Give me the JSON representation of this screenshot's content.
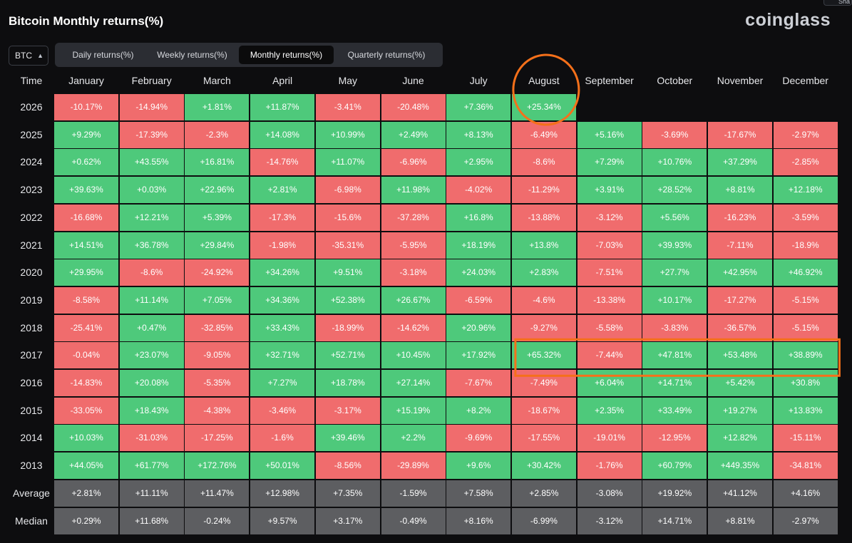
{
  "header": {
    "title": "Bitcoin Monthly returns(%)",
    "brand": "coinglass",
    "share_label": "Sha"
  },
  "controls": {
    "coin": "BTC",
    "tabs": [
      {
        "label": "Daily returns(%)",
        "active": false
      },
      {
        "label": "Weekly returns(%)",
        "active": false
      },
      {
        "label": "Monthly returns(%)",
        "active": true
      },
      {
        "label": "Quarterly returns(%)",
        "active": false
      }
    ]
  },
  "colors": {
    "positive": "#4ec97b",
    "negative": "#f06c6d",
    "summary": "#5d5e61",
    "annotation": "#f5701a"
  },
  "chart_data": {
    "type": "table",
    "title": "Bitcoin Monthly returns(%)",
    "row_header": "Time",
    "columns": [
      "January",
      "February",
      "March",
      "April",
      "May",
      "June",
      "July",
      "August",
      "September",
      "October",
      "November",
      "December"
    ],
    "rows": [
      {
        "label": "2026",
        "values": [
          "-10.17%",
          "-14.94%",
          "+1.81%",
          "+11.87%",
          "-3.41%",
          "-20.48%",
          "+7.36%",
          "+25.34%",
          "",
          "",
          "",
          ""
        ]
      },
      {
        "label": "2025",
        "values": [
          "+9.29%",
          "-17.39%",
          "-2.3%",
          "+14.08%",
          "+10.99%",
          "+2.49%",
          "+8.13%",
          "-6.49%",
          "+5.16%",
          "-3.69%",
          "-17.67%",
          "-2.97%"
        ]
      },
      {
        "label": "2024",
        "values": [
          "+0.62%",
          "+43.55%",
          "+16.81%",
          "-14.76%",
          "+11.07%",
          "-6.96%",
          "+2.95%",
          "-8.6%",
          "+7.29%",
          "+10.76%",
          "+37.29%",
          "-2.85%"
        ]
      },
      {
        "label": "2023",
        "values": [
          "+39.63%",
          "+0.03%",
          "+22.96%",
          "+2.81%",
          "-6.98%",
          "+11.98%",
          "-4.02%",
          "-11.29%",
          "+3.91%",
          "+28.52%",
          "+8.81%",
          "+12.18%"
        ]
      },
      {
        "label": "2022",
        "values": [
          "-16.68%",
          "+12.21%",
          "+5.39%",
          "-17.3%",
          "-15.6%",
          "-37.28%",
          "+16.8%",
          "-13.88%",
          "-3.12%",
          "+5.56%",
          "-16.23%",
          "-3.59%"
        ]
      },
      {
        "label": "2021",
        "values": [
          "+14.51%",
          "+36.78%",
          "+29.84%",
          "-1.98%",
          "-35.31%",
          "-5.95%",
          "+18.19%",
          "+13.8%",
          "-7.03%",
          "+39.93%",
          "-7.11%",
          "-18.9%"
        ]
      },
      {
        "label": "2020",
        "values": [
          "+29.95%",
          "-8.6%",
          "-24.92%",
          "+34.26%",
          "+9.51%",
          "-3.18%",
          "+24.03%",
          "+2.83%",
          "-7.51%",
          "+27.7%",
          "+42.95%",
          "+46.92%"
        ]
      },
      {
        "label": "2019",
        "values": [
          "-8.58%",
          "+11.14%",
          "+7.05%",
          "+34.36%",
          "+52.38%",
          "+26.67%",
          "-6.59%",
          "-4.6%",
          "-13.38%",
          "+10.17%",
          "-17.27%",
          "-5.15%"
        ]
      },
      {
        "label": "2018",
        "values": [
          "-25.41%",
          "+0.47%",
          "-32.85%",
          "+33.43%",
          "-18.99%",
          "-14.62%",
          "+20.96%",
          "-9.27%",
          "-5.58%",
          "-3.83%",
          "-36.57%",
          "-5.15%"
        ]
      },
      {
        "label": "2017",
        "values": [
          "-0.04%",
          "+23.07%",
          "-9.05%",
          "+32.71%",
          "+52.71%",
          "+10.45%",
          "+17.92%",
          "+65.32%",
          "-7.44%",
          "+47.81%",
          "+53.48%",
          "+38.89%"
        ]
      },
      {
        "label": "2016",
        "values": [
          "-14.83%",
          "+20.08%",
          "-5.35%",
          "+7.27%",
          "+18.78%",
          "+27.14%",
          "-7.67%",
          "-7.49%",
          "+6.04%",
          "+14.71%",
          "+5.42%",
          "+30.8%"
        ]
      },
      {
        "label": "2015",
        "values": [
          "-33.05%",
          "+18.43%",
          "-4.38%",
          "-3.46%",
          "-3.17%",
          "+15.19%",
          "+8.2%",
          "-18.67%",
          "+2.35%",
          "+33.49%",
          "+19.27%",
          "+13.83%"
        ]
      },
      {
        "label": "2014",
        "values": [
          "+10.03%",
          "-31.03%",
          "-17.25%",
          "-1.6%",
          "+39.46%",
          "+2.2%",
          "-9.69%",
          "-17.55%",
          "-19.01%",
          "-12.95%",
          "+12.82%",
          "-15.11%"
        ]
      },
      {
        "label": "2013",
        "values": [
          "+44.05%",
          "+61.77%",
          "+172.76%",
          "+50.01%",
          "-8.56%",
          "-29.89%",
          "+9.6%",
          "+30.42%",
          "-1.76%",
          "+60.79%",
          "+449.35%",
          "-34.81%"
        ]
      }
    ],
    "summary_rows": [
      {
        "label": "Average",
        "values": [
          "+2.81%",
          "+11.11%",
          "+11.47%",
          "+12.98%",
          "+7.35%",
          "-1.59%",
          "+7.58%",
          "+2.85%",
          "-3.08%",
          "+19.92%",
          "+41.12%",
          "+4.16%"
        ]
      },
      {
        "label": "Median",
        "values": [
          "+0.29%",
          "+11.68%",
          "-0.24%",
          "+9.57%",
          "+3.17%",
          "-0.49%",
          "+8.16%",
          "-6.99%",
          "-3.12%",
          "+14.71%",
          "+8.81%",
          "-2.97%"
        ]
      }
    ],
    "annotations": [
      {
        "type": "circle",
        "target": "August 2026"
      },
      {
        "type": "rectangle",
        "target": "2017 August–December"
      }
    ]
  }
}
